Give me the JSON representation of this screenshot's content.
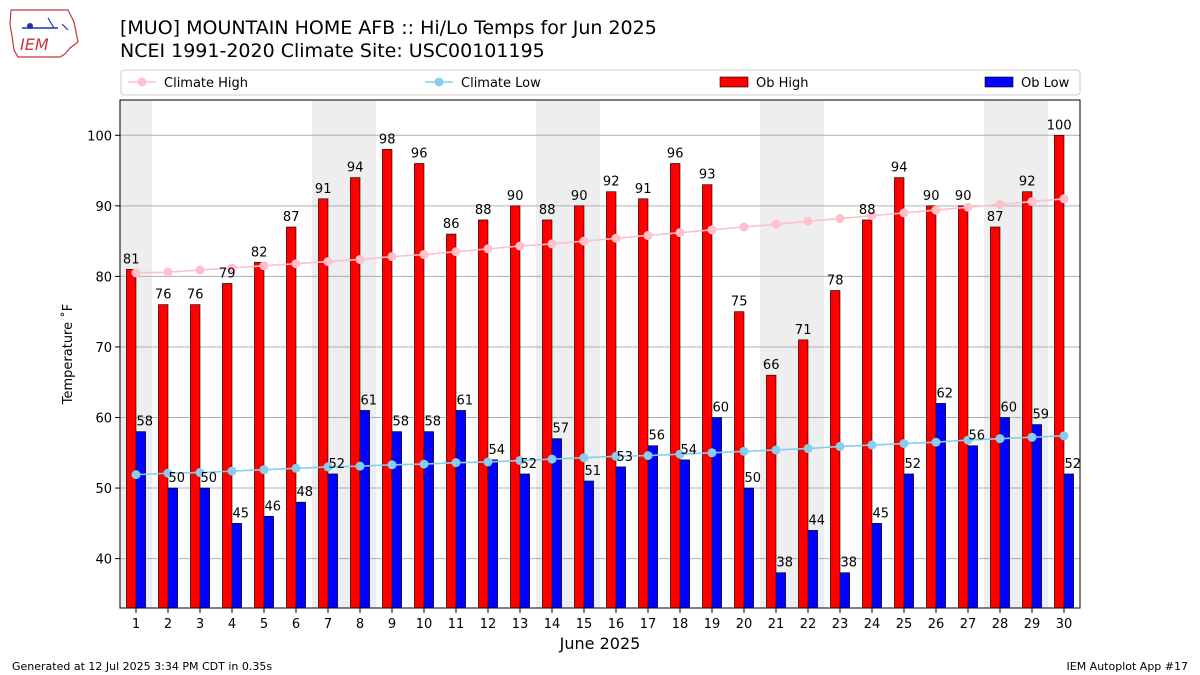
{
  "title_line1": "[MUO] MOUNTAIN HOME AFB :: Hi/Lo Temps for Jun 2025",
  "title_line2": "NCEI 1991-2020 Climate Site: USC00101195",
  "logo_text": "IEM",
  "footer_left": "Generated at 12 Jul 2025 3:34 PM CDT in 0.35s",
  "footer_right": "IEM Autoplot App #17",
  "colors": {
    "ob_high": "#ff0000",
    "ob_low": "#0000ff",
    "climate_high": "#ffc0cb",
    "climate_low": "#87ceeb",
    "weekend_shade": "#eeeeee",
    "grid": "#b0b0b0"
  },
  "chart_data": {
    "type": "bar",
    "xlabel": "June 2025",
    "ylabel": "Temperature ˚F",
    "ylim": [
      33,
      105
    ],
    "yticks": [
      40,
      50,
      60,
      70,
      80,
      90,
      100
    ],
    "grid": "horizontal",
    "legend_placement": "top",
    "categories": [
      "1",
      "2",
      "3",
      "4",
      "5",
      "6",
      "7",
      "8",
      "9",
      "10",
      "11",
      "12",
      "13",
      "14",
      "15",
      "16",
      "17",
      "18",
      "19",
      "20",
      "21",
      "22",
      "23",
      "24",
      "25",
      "26",
      "27",
      "28",
      "29",
      "30"
    ],
    "weekend_days": [
      1,
      7,
      8,
      14,
      15,
      21,
      22,
      28,
      29
    ],
    "series": [
      {
        "name": "Ob High",
        "kind": "bar",
        "values": [
          81,
          76,
          76,
          79,
          82,
          87,
          91,
          94,
          98,
          96,
          86,
          88,
          90,
          88,
          90,
          92,
          91,
          96,
          93,
          75,
          66,
          71,
          78,
          88,
          94,
          90,
          90,
          87,
          92,
          100
        ]
      },
      {
        "name": "Ob Low",
        "kind": "bar",
        "values": [
          58,
          50,
          50,
          45,
          46,
          48,
          52,
          61,
          58,
          58,
          61,
          54,
          52,
          57,
          51,
          53,
          56,
          54,
          60,
          50,
          38,
          44,
          38,
          45,
          52,
          62,
          56,
          60,
          59,
          52
        ]
      },
      {
        "name": "Climate High",
        "kind": "line",
        "values": [
          80.5,
          80.6,
          80.9,
          81.2,
          81.5,
          81.8,
          82.1,
          82.4,
          82.8,
          83.1,
          83.5,
          83.9,
          84.3,
          84.6,
          85.0,
          85.4,
          85.8,
          86.2,
          86.6,
          87.0,
          87.4,
          87.8,
          88.2,
          88.6,
          89.0,
          89.4,
          89.8,
          90.2,
          90.6,
          91.0
        ]
      },
      {
        "name": "Climate Low",
        "kind": "line",
        "values": [
          51.9,
          52.1,
          52.2,
          52.4,
          52.6,
          52.8,
          53.0,
          53.1,
          53.3,
          53.4,
          53.6,
          53.7,
          53.9,
          54.1,
          54.3,
          54.5,
          54.6,
          54.8,
          55.0,
          55.2,
          55.4,
          55.6,
          55.9,
          56.1,
          56.3,
          56.5,
          56.8,
          57.0,
          57.2,
          57.4
        ]
      }
    ]
  }
}
